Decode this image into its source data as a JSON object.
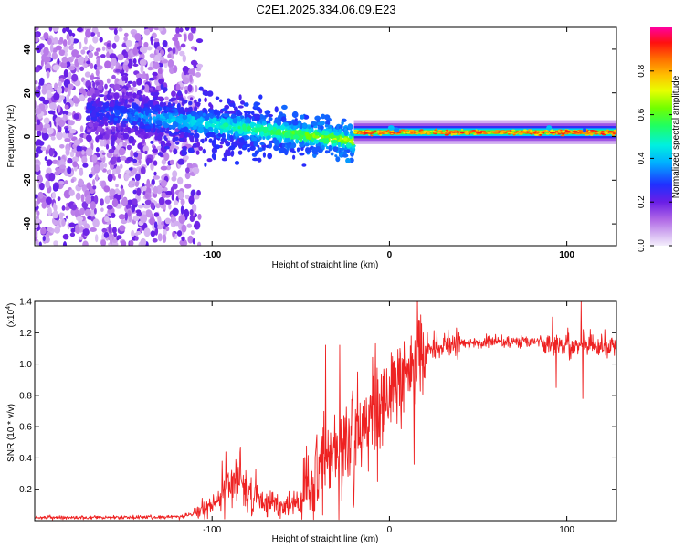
{
  "title": "C2E1.2025.334.06.09.E23",
  "colors": {
    "snr_line": "#ee2222",
    "axis": "#000000"
  },
  "chart_data": [
    {
      "type": "heatmap",
      "name": "spectrogram",
      "xlabel": "Height of straight line (km)",
      "ylabel": "Frequency (Hz)",
      "xlim": [
        -200,
        128
      ],
      "ylim": [
        -50,
        50
      ],
      "xticks": [
        -100,
        0,
        100
      ],
      "xtick_labels": [
        "-100",
        "0",
        "100"
      ],
      "yticks": [
        -40,
        -20,
        0,
        20,
        40
      ],
      "ytick_labels": [
        "-40",
        "-20",
        "0",
        "20",
        "40"
      ],
      "colorbar": {
        "label": "Normalized spectral amplitude",
        "range": [
          0,
          1
        ],
        "ticks": [
          0.0,
          0.2,
          0.4,
          0.6,
          0.8
        ],
        "tick_labels": [
          "0.0",
          "0.2",
          "0.4",
          "0.6",
          "0.8"
        ]
      },
      "features": [
        {
          "x_range": [
            -200,
            -110
          ],
          "freq_range": [
            -50,
            50
          ],
          "description": "scattered noise"
        },
        {
          "x_range": [
            -170,
            -20
          ],
          "freq_center_start": 12,
          "freq_center_end": -2,
          "bandwidth_start": 18,
          "bandwidth_end": 8
        },
        {
          "x_range": [
            -20,
            128
          ],
          "freq_center": 2,
          "bandwidth": 4
        }
      ]
    },
    {
      "type": "line",
      "name": "snr",
      "xlabel": "Height of straight line (km)",
      "ylabel": "SNR (10 * v/v)",
      "y_multiplier_label": "(x10",
      "y_multiplier_exp": "4",
      "y_multiplier_close": ")",
      "xlim": [
        -200,
        128
      ],
      "ylim": [
        0,
        1.4
      ],
      "xticks": [
        -100,
        0,
        100
      ],
      "xtick_labels": [
        "-100",
        "0",
        "100"
      ],
      "yticks": [
        0.2,
        0.4,
        0.6,
        0.8,
        1.0,
        1.2,
        1.4
      ],
      "ytick_labels": [
        "0.2",
        "0.4",
        "0.6",
        "0.8",
        "1.0",
        "1.2",
        "1.4"
      ],
      "envelope": {
        "x": [
          -200,
          -150,
          -130,
          -115,
          -105,
          -95,
          -90,
          -85,
          -82,
          -78,
          -70,
          -60,
          -50,
          -45,
          -40,
          -35,
          -30,
          -25,
          -20,
          -15,
          -10,
          -5,
          0,
          5,
          10,
          15,
          20,
          30,
          40,
          60,
          80,
          90,
          95,
          100,
          110,
          128
        ],
        "y": [
          0.02,
          0.02,
          0.02,
          0.03,
          0.06,
          0.14,
          0.25,
          0.3,
          0.22,
          0.15,
          0.11,
          0.1,
          0.13,
          0.2,
          0.32,
          0.4,
          0.45,
          0.48,
          0.55,
          0.62,
          0.68,
          0.72,
          0.75,
          0.8,
          0.95,
          1.05,
          1.1,
          1.12,
          1.13,
          1.14,
          1.14,
          1.15,
          1.13,
          1.12,
          1.12,
          1.12
        ]
      },
      "spikes": [
        {
          "x": -110,
          "y": 0.08
        },
        {
          "x": -84,
          "y": 0.47
        },
        {
          "x": -36,
          "y": 1.12
        },
        {
          "x": -28,
          "y": 1.12
        },
        {
          "x": -18,
          "y": 0.95
        },
        {
          "x": -8,
          "y": 1.13
        },
        {
          "x": 6,
          "y": 1.1
        },
        {
          "x": 14,
          "y": 0.36
        },
        {
          "x": 92,
          "y": 1.3
        },
        {
          "x": 94,
          "y": 0.85
        },
        {
          "x": 108,
          "y": 1.4
        },
        {
          "x": 109,
          "y": 0.78
        }
      ]
    }
  ]
}
